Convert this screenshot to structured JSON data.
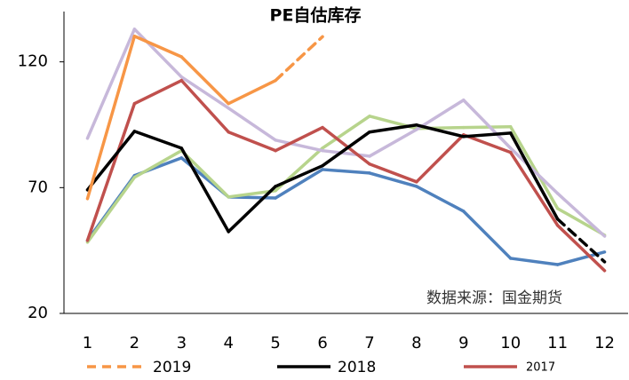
{
  "chart_data": {
    "type": "line",
    "title": "PE自估库存",
    "categories": [
      "1",
      "2",
      "3",
      "4",
      "5",
      "6",
      "7",
      "8",
      "9",
      "10",
      "11",
      "12"
    ],
    "ylim": [
      20,
      140
    ],
    "yticks": [
      20,
      70,
      120
    ],
    "annotation": "数据来源：国金期货",
    "series": [
      {
        "color": "#4f81bd",
        "values": [
          49,
          74.8,
          81.8,
          66.3,
          65.9,
          77.2,
          75.8,
          70.5,
          60.6,
          41.9,
          39.4,
          44.4
        ]
      },
      {
        "color": "#b7d48c",
        "values": [
          48.3,
          74.1,
          84.7,
          66.3,
          68.8,
          85.7,
          98.4,
          93.5,
          93.9,
          94.2,
          61.7,
          51.1
        ]
      },
      {
        "color": "#c7b8da",
        "values": [
          89.6,
          133,
          114,
          101.6,
          88.9,
          84.7,
          82.5,
          93.1,
          104.8,
          85.7,
          67.7,
          50.7
        ]
      },
      {
        "name": "2017",
        "color": "#c0504d",
        "values": [
          49,
          103.4,
          112.6,
          92.1,
          84.7,
          93.9,
          79.4,
          72.3,
          91,
          84,
          55,
          37
        ]
      },
      {
        "name": "2018",
        "color": "#000000",
        "dashed_from": 10,
        "values": [
          69.1,
          92.4,
          85.7,
          52.5,
          70.5,
          78.7,
          92.1,
          94.9,
          90.3,
          91.7,
          57.5,
          40.5
        ]
      },
      {
        "name": "2019",
        "color": "#f79646",
        "dashed_from": 4,
        "values": [
          65.6,
          130.2,
          122,
          103.4,
          112.6,
          130,
          null,
          null,
          null,
          null,
          null,
          null
        ]
      }
    ]
  }
}
